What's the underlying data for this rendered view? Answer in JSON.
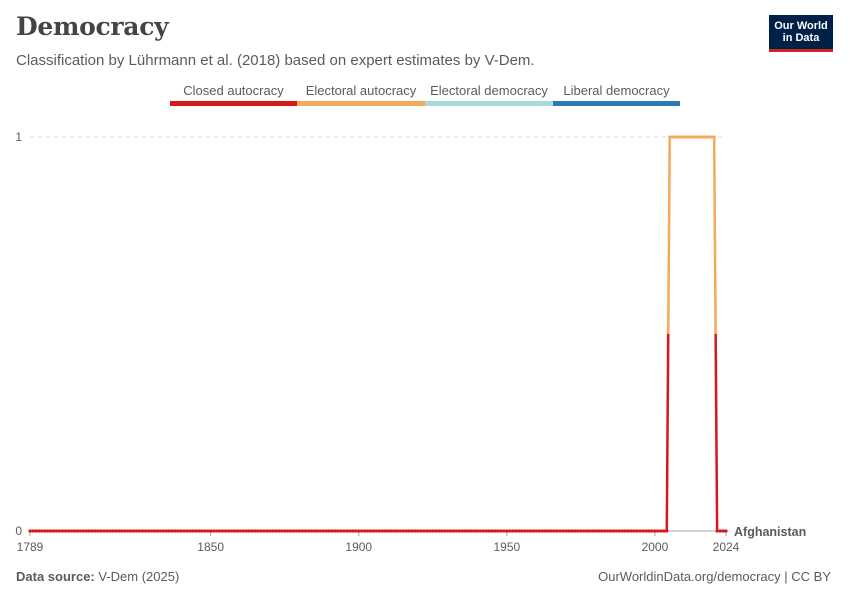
{
  "header": {
    "title": "Democracy",
    "subtitle": "Classification by Lührmann et al. (2018) based on expert estimates by V-Dem.",
    "logo_line1": "Our World",
    "logo_line2": "in Data"
  },
  "legend": [
    {
      "label": "Closed autocracy",
      "color": "#d7191c"
    },
    {
      "label": "Electoral autocracy",
      "color": "#f4a95c"
    },
    {
      "label": "Electoral democracy",
      "color": "#a8dadc"
    },
    {
      "label": "Liberal democracy",
      "color": "#2b7bb9"
    }
  ],
  "footer": {
    "source_label": "Data source:",
    "source_value": "V-Dem (2025)",
    "right": "OurWorldinData.org/democracy | CC BY"
  },
  "chart_data": {
    "type": "line",
    "title": "Democracy",
    "subtitle": "Classification by Lührmann et al. (2018) based on expert estimates by V-Dem.",
    "x_ticks": [
      "1789",
      "1850",
      "1900",
      "1950",
      "2000",
      "2024"
    ],
    "y_ticks": [
      "0",
      "1"
    ],
    "xlim": [
      1789,
      2024
    ],
    "ylim": [
      0,
      1
    ],
    "grid": "horizontal dashed",
    "legend_placement": "top-center",
    "series": [
      {
        "name": "Afghanistan",
        "label_color": "#d7191c",
        "segments": [
          {
            "x": [
              1789,
              2004
            ],
            "y": [
              0,
              0
            ]
          },
          {
            "x": [
              2005,
              2020
            ],
            "y": [
              1,
              1
            ]
          },
          {
            "x": [
              2021,
              2024
            ],
            "y": [
              0,
              0
            ]
          }
        ],
        "categories": {
          "0": "Closed autocracy",
          "1": "Electoral autocracy"
        }
      }
    ]
  }
}
